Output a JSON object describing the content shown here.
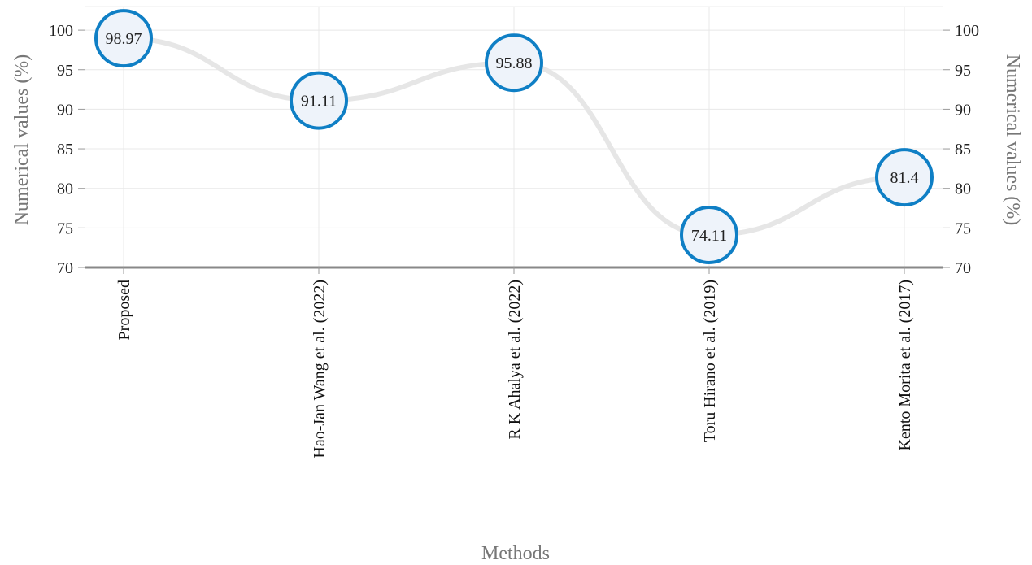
{
  "chart_data": {
    "type": "line",
    "categories": [
      "Proposed",
      "Hao-Jan Wang et al. (2022)",
      "R K Ahalya et al. (2022)",
      "Toru Hirano et al. (2019)",
      "Kento Morita et al. (2017)"
    ],
    "values": [
      98.97,
      91.11,
      95.88,
      74.11,
      81.4
    ],
    "value_labels": [
      "98.97",
      "91.11",
      "95.88",
      "74.11",
      "81.4"
    ],
    "xlabel": "Methods",
    "ylabel": "Numerical values (%)",
    "ylabel_right": "Numerical values (%)",
    "ylim": [
      70,
      103
    ],
    "yticks": [
      70,
      75,
      80,
      85,
      90,
      95,
      100
    ],
    "grid": true,
    "smooth": true,
    "line_color": "#e6e6e6",
    "marker_stroke": "#0f7fc5",
    "marker_fill": "#eef3fa",
    "axis_color": "#888888"
  }
}
